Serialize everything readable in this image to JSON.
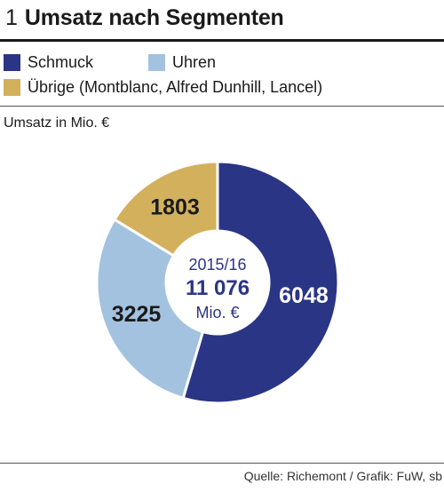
{
  "figure": {
    "number": "1",
    "title": "Umsatz nach Segmenten",
    "unit_label": "Umsatz in Mio. €",
    "source": "Quelle: Richemont / Grafik: FuW, sb"
  },
  "legend": [
    {
      "label": "Schmuck",
      "color": "#2b3585"
    },
    {
      "label": "Uhren",
      "color": "#a3c2df"
    },
    {
      "label": "Übrige (Montblanc, Alfred Dunhill, Lancel)",
      "color": "#d3b05c"
    }
  ],
  "chart_data": {
    "type": "pie",
    "style": "donut",
    "center": {
      "period": "2015/16",
      "total": "11 076",
      "unit": "Mio. €"
    },
    "categories": [
      "Schmuck",
      "Uhren",
      "Übrige (Montblanc, Alfred Dunhill, Lancel)"
    ],
    "values": [
      6048,
      3225,
      1803
    ],
    "value_labels": [
      "6048",
      "3225",
      "1803"
    ],
    "colors": [
      "#2b3585",
      "#a3c2df",
      "#d3b05c"
    ],
    "label_colors": [
      "#ffffff",
      "#1a1a1a",
      "#1a1a1a"
    ],
    "legend_position": "top-left"
  }
}
